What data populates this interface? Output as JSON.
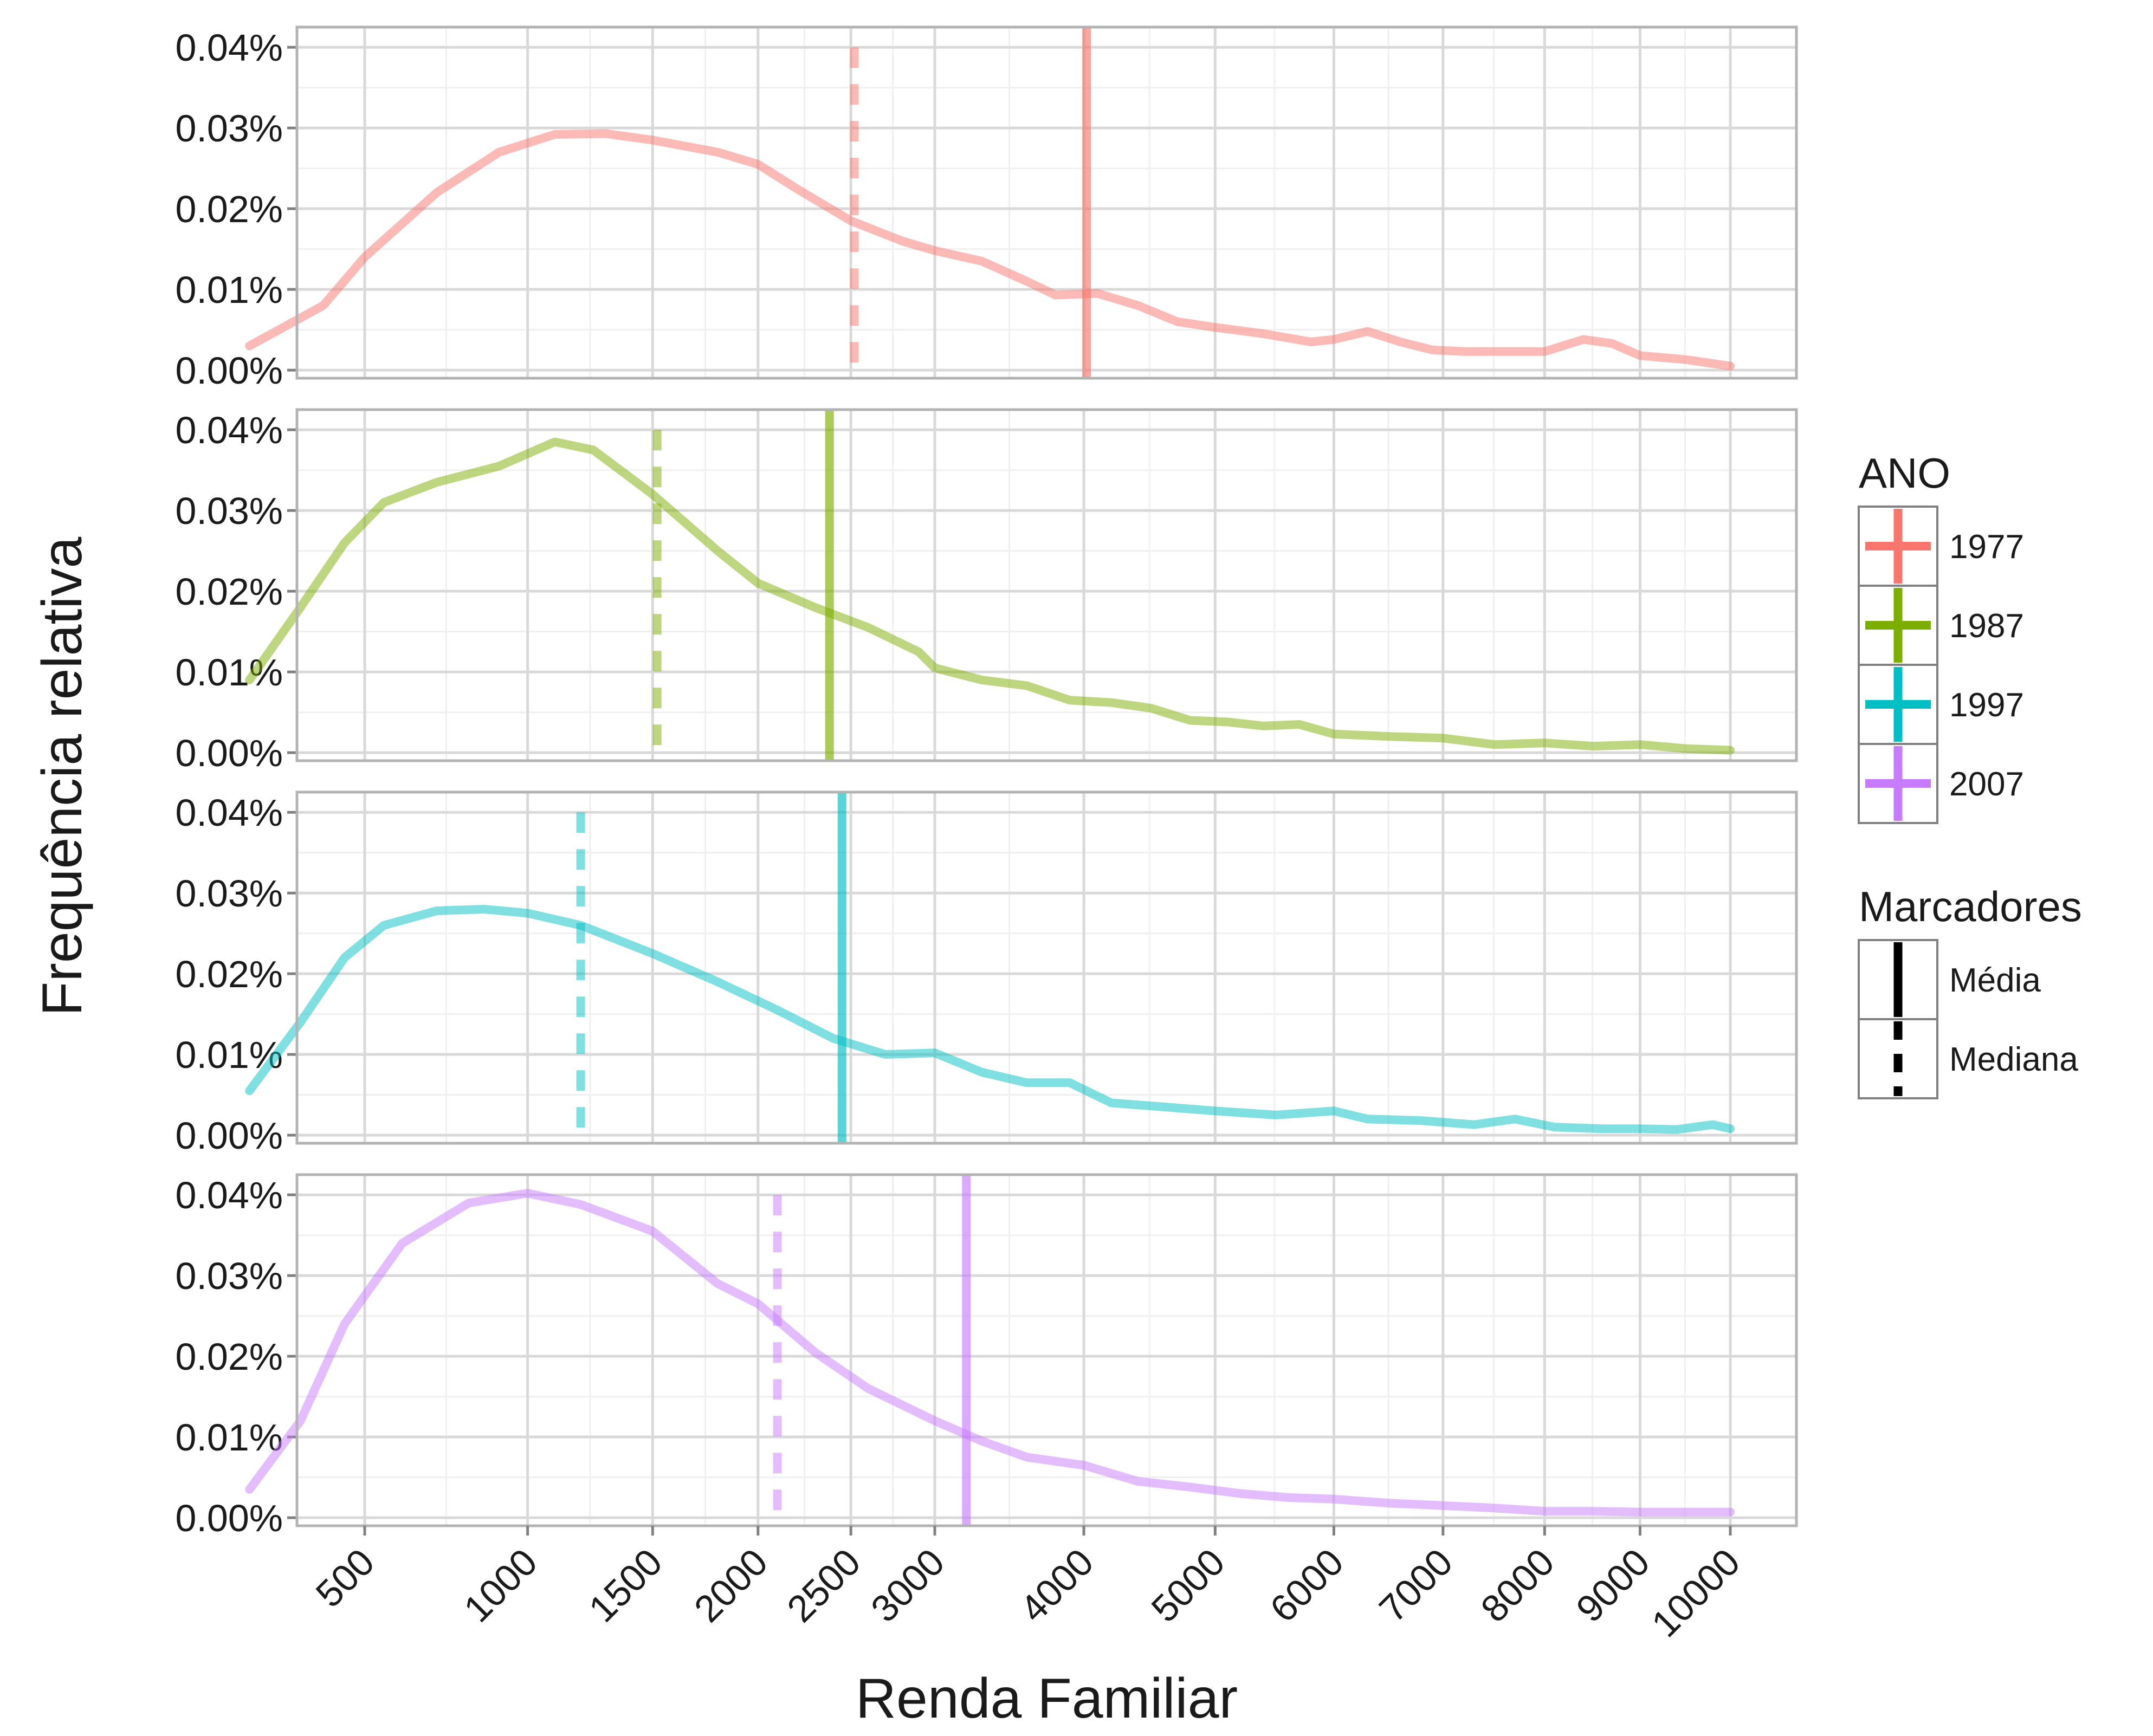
{
  "chart_data": {
    "type": "line",
    "xlabel": "Renda Familiar",
    "ylabel": "Frequência relativa",
    "x_ticks": [
      500,
      1000,
      1500,
      2000,
      2500,
      3000,
      4000,
      5000,
      6000,
      7000,
      8000,
      9000,
      10000
    ],
    "x_tick_labels": [
      "500",
      "1000",
      "1500",
      "2000",
      "2500",
      "3000",
      "4000",
      "5000",
      "6000",
      "7000",
      "8000",
      "9000",
      "10000"
    ],
    "x_scale": "sqrt",
    "xlim": [
      0,
      10500
    ],
    "y_ticks": [
      0,
      0.01,
      0.02,
      0.03,
      0.04
    ],
    "y_tick_labels": [
      "0.00%",
      "0.01%",
      "0.02%",
      "0.03%",
      "0.04%"
    ],
    "ylim": [
      -0.001,
      0.0425
    ],
    "grid": true,
    "facets": [
      "1977",
      "1987",
      "1997",
      "2007"
    ],
    "series": [
      {
        "name": "1977",
        "color": "#F8766D",
        "mean": 4020,
        "median": 2520,
        "points": [
          [
            250,
            0.003
          ],
          [
            400,
            0.008
          ],
          [
            500,
            0.014
          ],
          [
            700,
            0.022
          ],
          [
            900,
            0.027
          ],
          [
            1100,
            0.0292
          ],
          [
            1300,
            0.0293
          ],
          [
            1500,
            0.0285
          ],
          [
            1800,
            0.027
          ],
          [
            2000,
            0.0255
          ],
          [
            2200,
            0.0225
          ],
          [
            2500,
            0.0185
          ],
          [
            2800,
            0.016
          ],
          [
            3000,
            0.0148
          ],
          [
            3300,
            0.0135
          ],
          [
            3600,
            0.011
          ],
          [
            3800,
            0.0093
          ],
          [
            4100,
            0.0095
          ],
          [
            4400,
            0.008
          ],
          [
            4700,
            0.006
          ],
          [
            5000,
            0.0053
          ],
          [
            5400,
            0.0045
          ],
          [
            5800,
            0.0035
          ],
          [
            6000,
            0.0038
          ],
          [
            6300,
            0.0048
          ],
          [
            6600,
            0.0035
          ],
          [
            6900,
            0.0025
          ],
          [
            7200,
            0.0023
          ],
          [
            7600,
            0.0023
          ],
          [
            8000,
            0.0023
          ],
          [
            8400,
            0.0038
          ],
          [
            8700,
            0.0033
          ],
          [
            9000,
            0.0018
          ],
          [
            9500,
            0.0013
          ],
          [
            10000,
            0.0005
          ]
        ]
      },
      {
        "name": "1987",
        "color": "#7CAE00",
        "mean": 2380,
        "median": 1520,
        "points": [
          [
            250,
            0.009
          ],
          [
            350,
            0.018
          ],
          [
            450,
            0.026
          ],
          [
            550,
            0.031
          ],
          [
            700,
            0.0335
          ],
          [
            900,
            0.0355
          ],
          [
            1100,
            0.0385
          ],
          [
            1250,
            0.0375
          ],
          [
            1500,
            0.032
          ],
          [
            1800,
            0.025
          ],
          [
            2000,
            0.021
          ],
          [
            2300,
            0.018
          ],
          [
            2600,
            0.0155
          ],
          [
            2900,
            0.0125
          ],
          [
            3000,
            0.0105
          ],
          [
            3300,
            0.009
          ],
          [
            3600,
            0.0083
          ],
          [
            3900,
            0.0065
          ],
          [
            4200,
            0.0062
          ],
          [
            4500,
            0.0055
          ],
          [
            4800,
            0.004
          ],
          [
            5100,
            0.0038
          ],
          [
            5400,
            0.0033
          ],
          [
            5700,
            0.0035
          ],
          [
            6000,
            0.0023
          ],
          [
            6500,
            0.002
          ],
          [
            7000,
            0.0018
          ],
          [
            7500,
            0.001
          ],
          [
            8000,
            0.0012
          ],
          [
            8500,
            0.0008
          ],
          [
            9000,
            0.001
          ],
          [
            9500,
            0.0005
          ],
          [
            10000,
            0.0003
          ]
        ]
      },
      {
        "name": "1997",
        "color": "#00BFC4",
        "mean": 2450,
        "median": 1200,
        "points": [
          [
            250,
            0.0055
          ],
          [
            350,
            0.014
          ],
          [
            450,
            0.022
          ],
          [
            550,
            0.026
          ],
          [
            700,
            0.0278
          ],
          [
            850,
            0.028
          ],
          [
            1000,
            0.0275
          ],
          [
            1200,
            0.026
          ],
          [
            1500,
            0.0225
          ],
          [
            1800,
            0.019
          ],
          [
            2100,
            0.0155
          ],
          [
            2400,
            0.012
          ],
          [
            2700,
            0.01
          ],
          [
            3000,
            0.0102
          ],
          [
            3300,
            0.0078
          ],
          [
            3600,
            0.0065
          ],
          [
            3900,
            0.0065
          ],
          [
            4200,
            0.004
          ],
          [
            4600,
            0.0035
          ],
          [
            5000,
            0.003
          ],
          [
            5500,
            0.0025
          ],
          [
            6000,
            0.003
          ],
          [
            6300,
            0.002
          ],
          [
            6800,
            0.0018
          ],
          [
            7300,
            0.0013
          ],
          [
            7700,
            0.002
          ],
          [
            8100,
            0.001
          ],
          [
            8600,
            0.0008
          ],
          [
            9000,
            0.0008
          ],
          [
            9400,
            0.0007
          ],
          [
            9800,
            0.0013
          ],
          [
            10000,
            0.0008
          ]
        ]
      },
      {
        "name": "2007",
        "color": "#C77CFF",
        "mean": 3200,
        "median": 2100,
        "points": [
          [
            250,
            0.0035
          ],
          [
            350,
            0.012
          ],
          [
            450,
            0.024
          ],
          [
            600,
            0.034
          ],
          [
            800,
            0.039
          ],
          [
            1000,
            0.0402
          ],
          [
            1200,
            0.0388
          ],
          [
            1500,
            0.0355
          ],
          [
            1800,
            0.029
          ],
          [
            2000,
            0.0265
          ],
          [
            2300,
            0.0205
          ],
          [
            2600,
            0.016
          ],
          [
            3000,
            0.012
          ],
          [
            3300,
            0.0095
          ],
          [
            3600,
            0.0075
          ],
          [
            4000,
            0.0065
          ],
          [
            4400,
            0.0045
          ],
          [
            4800,
            0.0038
          ],
          [
            5200,
            0.003
          ],
          [
            5600,
            0.0025
          ],
          [
            6000,
            0.0023
          ],
          [
            6500,
            0.0018
          ],
          [
            7000,
            0.0015
          ],
          [
            7500,
            0.0012
          ],
          [
            8000,
            0.0008
          ],
          [
            8500,
            0.0008
          ],
          [
            9000,
            0.0007
          ],
          [
            9500,
            0.0007
          ],
          [
            10000,
            0.0007
          ]
        ]
      }
    ],
    "legends": [
      {
        "title": "ANO",
        "entries": [
          {
            "label": "1977",
            "color": "#F8766D"
          },
          {
            "label": "1987",
            "color": "#7CAE00"
          },
          {
            "label": "1997",
            "color": "#00BFC4"
          },
          {
            "label": "2007",
            "color": "#C77CFF"
          }
        ]
      },
      {
        "title": "Marcadores",
        "entries": [
          {
            "label": "Média",
            "style": "solid"
          },
          {
            "label": "Mediana",
            "style": "dashed"
          }
        ]
      }
    ]
  }
}
